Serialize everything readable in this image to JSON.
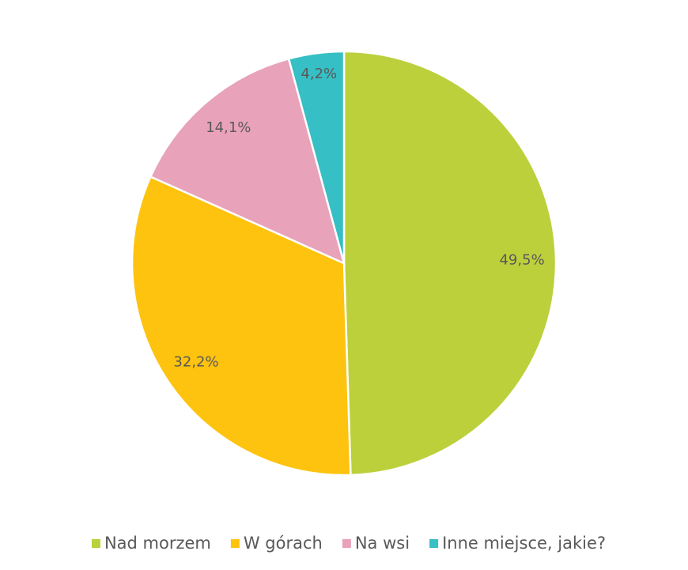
{
  "chart_data": {
    "type": "pie",
    "categories": [
      "Nad morzem",
      "W górach",
      "Na wsi",
      "Inne miejsce, jakie?"
    ],
    "values": [
      49.5,
      32.2,
      14.1,
      4.2
    ],
    "value_labels": [
      "49,5%",
      "32,2%",
      "14,1%",
      "4,2%"
    ],
    "colors": [
      "#bcd03c",
      "#fdc30f",
      "#e8a2b9",
      "#36bfc4"
    ],
    "legend": "bottom"
  }
}
